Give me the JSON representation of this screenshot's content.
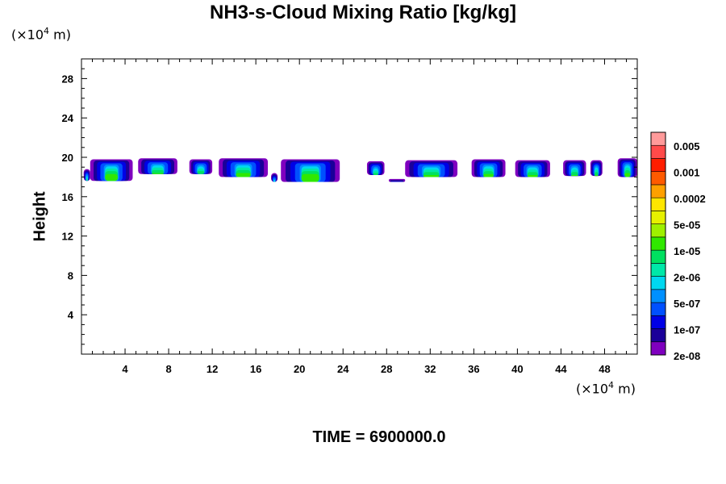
{
  "chart_data": {
    "type": "heatmap",
    "title": "NH3-s-Cloud Mixing Ratio [kg/kg]",
    "xlabel": "",
    "ylabel": "Height",
    "x_unit": {
      "prefix": "(×10",
      "exp": "4",
      "suffix": " m)"
    },
    "y_unit": {
      "prefix": "(×10",
      "exp": "4",
      "suffix": " m)"
    },
    "xlim": [
      0,
      51
    ],
    "ylim": [
      0,
      30
    ],
    "x_ticks": [
      4,
      8,
      12,
      16,
      20,
      24,
      28,
      32,
      36,
      40,
      44,
      48
    ],
    "y_ticks": [
      4,
      8,
      12,
      16,
      20,
      24,
      28
    ],
    "colorbar": {
      "labels": [
        "0.005",
        "0.001",
        "0.0002",
        "5e-05",
        "1e-05",
        "2e-06",
        "5e-07",
        "1e-07",
        "2e-08"
      ],
      "colors": [
        "#7f00bf",
        "#1a0099",
        "#0000e6",
        "#0050ff",
        "#0090ff",
        "#00d8f0",
        "#00e8a8",
        "#00e060",
        "#30e800",
        "#9ef000",
        "#e6f000",
        "#ffe600",
        "#ffa000",
        "#ff5a00",
        "#ff1e00",
        "#ff4a4a",
        "#ff9a9a"
      ]
    },
    "cloud_cells": [
      {
        "x0": 0.2,
        "x1": 0.8,
        "top": 18.8,
        "low": 17.6
      },
      {
        "x0": 0.8,
        "x1": 4.7,
        "top": 19.8,
        "low": 17.6
      },
      {
        "x0": 5.2,
        "x1": 8.8,
        "top": 19.9,
        "low": 18.3
      },
      {
        "x0": 9.9,
        "x1": 12.0,
        "top": 19.8,
        "low": 18.3
      },
      {
        "x0": 12.6,
        "x1": 17.1,
        "top": 19.9,
        "low": 18.0
      },
      {
        "x0": 17.4,
        "x1": 18.0,
        "top": 18.4,
        "low": 17.5
      },
      {
        "x0": 18.3,
        "x1": 23.7,
        "top": 19.8,
        "low": 17.5
      },
      {
        "x0": 26.2,
        "x1": 27.8,
        "top": 19.6,
        "low": 18.2
      },
      {
        "x0": 28.2,
        "x1": 29.7,
        "top": 17.8,
        "low": 17.5
      },
      {
        "x0": 29.7,
        "x1": 34.5,
        "top": 19.7,
        "low": 18.0
      },
      {
        "x0": 35.8,
        "x1": 38.9,
        "top": 19.8,
        "low": 18.0
      },
      {
        "x0": 39.8,
        "x1": 43.0,
        "top": 19.7,
        "low": 18.0
      },
      {
        "x0": 44.2,
        "x1": 46.3,
        "top": 19.7,
        "low": 18.1
      },
      {
        "x0": 46.7,
        "x1": 47.8,
        "top": 19.7,
        "low": 18.1
      },
      {
        "x0": 49.2,
        "x1": 51.0,
        "top": 19.9,
        "low": 18.0
      }
    ]
  },
  "footer": {
    "time_label": "TIME = 6900000.0"
  }
}
